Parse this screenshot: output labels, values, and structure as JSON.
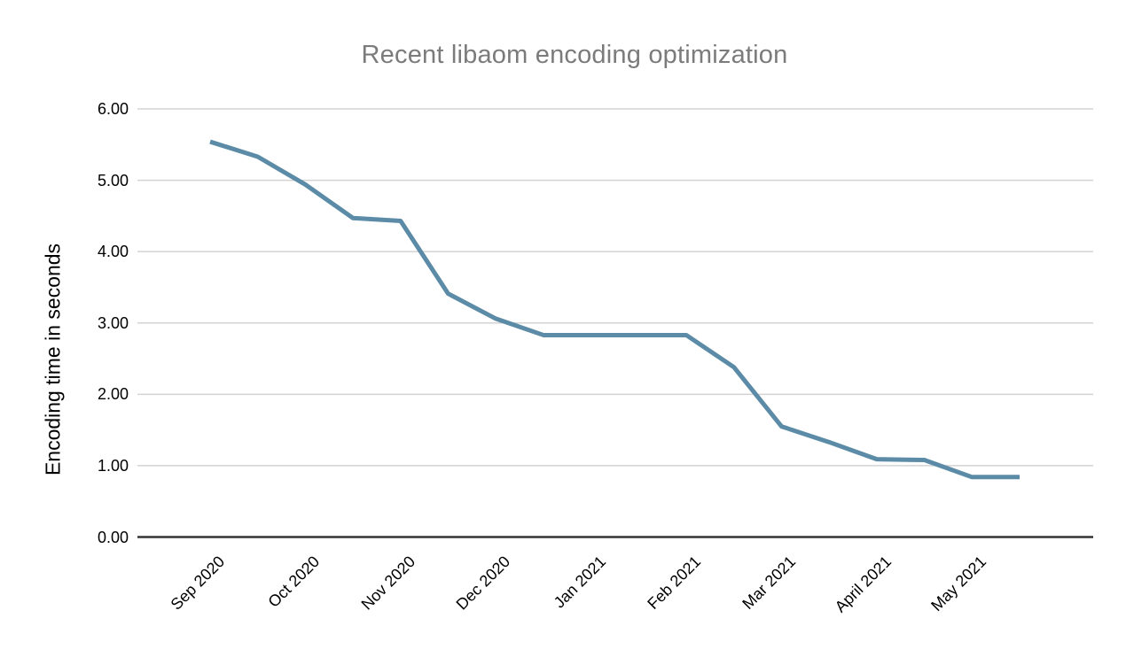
{
  "chart_data": {
    "type": "line",
    "title": "Recent libaom encoding optimization",
    "xlabel": "",
    "ylabel": "Encoding time in seconds",
    "ylim": [
      0,
      6
    ],
    "grid": true,
    "legend": "none",
    "ytick_labels": [
      "0.00",
      "1.00",
      "2.00",
      "3.00",
      "4.00",
      "5.00",
      "6.00"
    ],
    "xtick_labels": [
      "Sep 2020",
      "Oct 2020",
      "Nov 2020",
      "Dec 2020",
      "Jan 2021",
      "Feb 2021",
      "Mar 2021",
      "April 2021",
      "May 2021"
    ],
    "xtick_point_indices": [
      0,
      2,
      4,
      6,
      8,
      10,
      12,
      14,
      16
    ],
    "points_per_month": 2,
    "series": [
      {
        "values": [
          5.54,
          5.33,
          4.94,
          4.47,
          4.43,
          3.41,
          3.06,
          2.83,
          2.83,
          2.83,
          2.83,
          2.38,
          1.55,
          1.33,
          1.09,
          1.08,
          0.84,
          0.84
        ],
        "color": "#5b8ba6"
      }
    ],
    "colors": {
      "grid_line": "#d3d3d3",
      "axis_line": "#333333",
      "title_text": "#7b7b7b",
      "tick_text": "#000000"
    }
  }
}
